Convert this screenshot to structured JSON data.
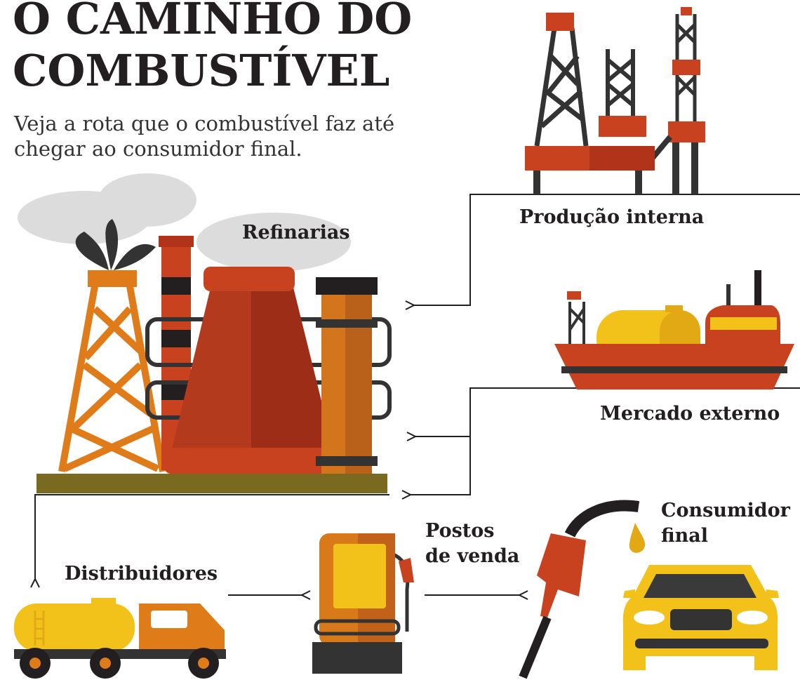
{
  "title": [
    "O CAMINHO DO",
    "COMBUSTÍVEL"
  ],
  "subtitle": [
    "Veja a rota que o combustível faz até",
    "chegar ao consumidor final."
  ],
  "nodes": [
    {
      "label": [
        "Refinarias"
      ]
    },
    {
      "label": [
        "Produção interna"
      ]
    },
    {
      "label": [
        "Mercado externo"
      ]
    },
    {
      "label": [
        "Distribuidores"
      ]
    },
    {
      "label": [
        "Postos",
        "de venda"
      ]
    },
    {
      "label": [
        "Consumidor",
        "final"
      ]
    }
  ]
}
